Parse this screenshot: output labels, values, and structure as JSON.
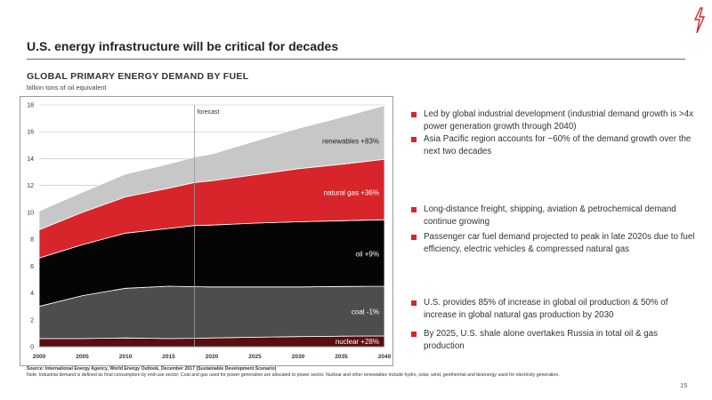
{
  "header": {
    "title": "U.S. energy infrastructure will be critical for decades"
  },
  "chart_data": {
    "type": "area",
    "title": "GLOBAL PRIMARY ENERGY DEMAND BY FUEL",
    "subtitle": "billion tons of oil equivalent",
    "x": [
      2000,
      2002,
      2004,
      2006,
      2008,
      2010,
      2011,
      2015,
      2020,
      2025,
      2030,
      2035,
      2040
    ],
    "x_ticks": [
      "2000",
      "2005",
      "2010",
      "2015",
      "2020",
      "2025",
      "2030",
      "2035",
      "2040"
    ],
    "x_tick_values": [
      2000,
      2005,
      2010,
      2015,
      2020,
      2025,
      2030,
      2035,
      2040
    ],
    "ylim": [
      0,
      18
    ],
    "y_ticks": [
      0,
      2,
      4,
      6,
      8,
      10,
      12,
      14,
      16,
      18
    ],
    "forecast_start": 2018,
    "forecast_label": "forecast",
    "series": [
      {
        "name": "nuclear +28%",
        "color": "#5a0e12",
        "x": [
          2000,
          2005,
          2010,
          2015,
          2018,
          2020,
          2025,
          2030,
          2035,
          2040
        ],
        "values": [
          0.6,
          0.6,
          0.65,
          0.6,
          0.62,
          0.65,
          0.7,
          0.75,
          0.78,
          0.8
        ]
      },
      {
        "name": "coal -1%",
        "color": "#4d4d4d",
        "x": [
          2000,
          2005,
          2010,
          2015,
          2018,
          2020,
          2025,
          2030,
          2035,
          2040
        ],
        "values": [
          2.4,
          3.2,
          3.7,
          3.9,
          3.85,
          3.8,
          3.75,
          3.7,
          3.7,
          3.7
        ]
      },
      {
        "name": "oil +9%",
        "color": "#050505",
        "x": [
          2000,
          2005,
          2010,
          2015,
          2018,
          2020,
          2025,
          2030,
          2035,
          2040
        ],
        "values": [
          3.6,
          3.8,
          4.1,
          4.3,
          4.55,
          4.6,
          4.75,
          4.85,
          4.9,
          4.95
        ]
      },
      {
        "name": "natural gas +36%",
        "color": "#d7252b",
        "x": [
          2000,
          2005,
          2010,
          2015,
          2018,
          2020,
          2025,
          2030,
          2035,
          2040
        ],
        "values": [
          2.1,
          2.4,
          2.7,
          3.0,
          3.2,
          3.3,
          3.6,
          3.95,
          4.2,
          4.5
        ]
      },
      {
        "name": "renewables +83%",
        "color": "#c7c7c7",
        "x": [
          2000,
          2005,
          2010,
          2015,
          2018,
          2020,
          2025,
          2030,
          2035,
          2040
        ],
        "values": [
          1.4,
          1.5,
          1.7,
          1.8,
          1.9,
          2.0,
          2.5,
          3.0,
          3.5,
          4.0
        ]
      }
    ],
    "legend": "inline"
  },
  "bullets": [
    {
      "text": "Led by global industrial development (industrial demand growth is >4x power generation growth through 2040)"
    },
    {
      "text": "Asia Pacific region accounts for ~60% of the demand growth over the next two decades"
    },
    {
      "text": "Long-distance freight, shipping, aviation & petrochemical demand continue growing"
    },
    {
      "text": "Passenger car fuel demand projected to peak in late 2020s due to fuel efficiency, electric vehicles & compressed natural gas"
    },
    {
      "text": "U.S. provides 85% of increase in global oil production & 50% of increase in global natural gas production by 2030"
    },
    {
      "text": "By 2025, U.S. shale alone overtakes Russia in total oil & gas production"
    }
  ],
  "footer": {
    "source_line1": "Source: International Energy Agency, World Energy Outlook, December 2017 (Sustainable Development Scenario)",
    "source_line2": "Note: Industrial demand is defined as final consumption by end-use sector; Coal and gas used for power generation are allocated to power sector. Nuclear and other renewables include hydro, solar, wind, geothermal and bioenergy used for electricity generation.",
    "page_number": "15"
  },
  "colors": {
    "accent": "#d7252b",
    "gridline": "#bfbfbf"
  }
}
